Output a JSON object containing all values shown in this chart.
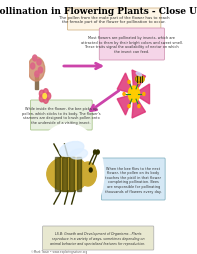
{
  "title": "Pollination in Flowering Plants - Close Up",
  "bg_color": "#ffffff",
  "title_color": "#000000",
  "title_fontsize": 6.5,
  "box1_text": "The pollen from the male part of the flower has to reach\nthe female part of the flower for pollination to occur.",
  "box2_text": "Most flowers are pollinated by insects, which are\nattracted to them by their bright colors and sweet smell.\nThese traits signal the availability of nectar on which\nthe insect can feed.",
  "box3_text": "While inside the flower, the bee picks up\npollen, which sticks to its body. The flower's\nstamens are designed to brush pollen onto\nthe underside of a visiting insect.",
  "box4_text": "When the bee flies to the next\nflower, the pollen on its body\ntouches the pistil in that flower\ncompleting pollination. Bees\nare responsible for pollinating\nthousands of flowers every day.",
  "footer_text": "LS.B: Growth and Development of Organisms - Plants\nreproduce in a variety of ways, sometimes depending on\nanimal behavior and specialized features for reproduction.",
  "box1_bg": "#fdf5e6",
  "box2_bg": "#f5d5e8",
  "box3_bg": "#e8f0e0",
  "box4_bg": "#d5e8f5",
  "footer_bg": "#e8e8d0",
  "arrow_color": "#cc44aa",
  "watermark": "©Mark Twain • www.exploringnature.org"
}
